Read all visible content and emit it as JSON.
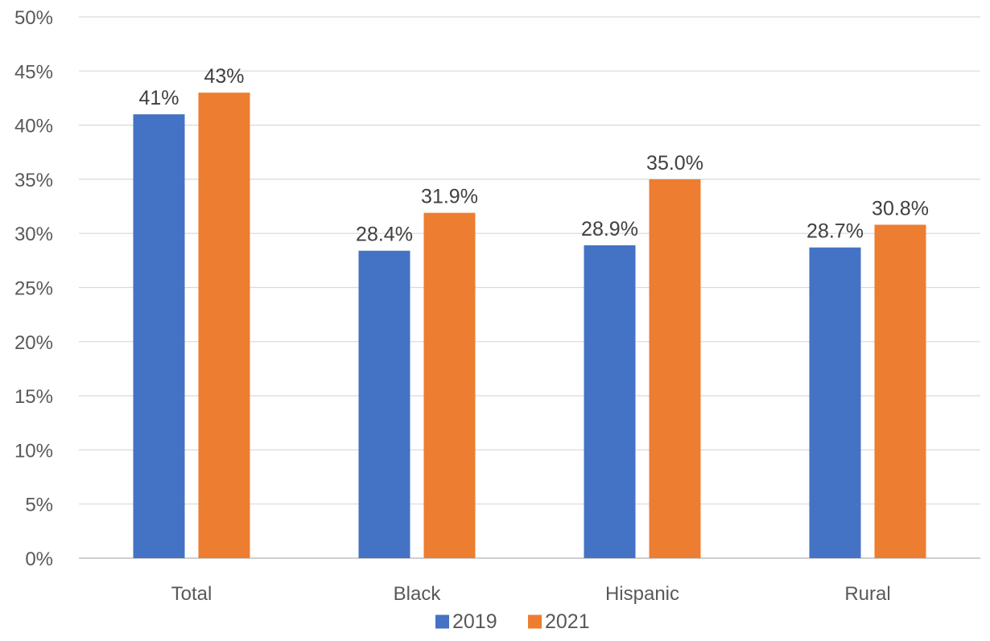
{
  "chart_data": {
    "type": "bar",
    "title": "",
    "xlabel": "",
    "ylabel": "",
    "categories": [
      "Total",
      "Black",
      "Hispanic",
      "Rural"
    ],
    "series": [
      {
        "name": "2019",
        "color": "#4472C4",
        "values": [
          41,
          28.4,
          28.9,
          28.7
        ],
        "labels": [
          "41%",
          "28.4%",
          "28.9%",
          "28.7%"
        ]
      },
      {
        "name": "2021",
        "color": "#ED7D31",
        "values": [
          43,
          31.9,
          35.0,
          30.8
        ],
        "labels": [
          "43%",
          "31.9%",
          "35.0%",
          "30.8%"
        ]
      }
    ],
    "ylim": [
      0,
      50
    ],
    "yticks": [
      0,
      5,
      10,
      15,
      20,
      25,
      30,
      35,
      40,
      45,
      50
    ],
    "ytick_labels": [
      "0%",
      "5%",
      "10%",
      "15%",
      "20%",
      "25%",
      "30%",
      "35%",
      "40%",
      "45%",
      "50%"
    ],
    "grid": true,
    "legend": "bottom-center"
  }
}
